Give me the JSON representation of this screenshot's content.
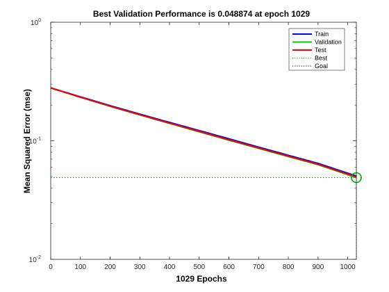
{
  "chart_data": {
    "type": "line",
    "title": "Best Validation Performance is 0.048874 at epoch 1029",
    "xlabel": "1029 Epochs",
    "ylabel": "Mean Squared Error  (mse)",
    "xlim": [
      0,
      1029
    ],
    "ylim": [
      0.01,
      1
    ],
    "yscale": "log",
    "x_ticks": [
      0,
      100,
      200,
      300,
      400,
      500,
      600,
      700,
      800,
      900,
      1000
    ],
    "y_ticks": [
      {
        "value": 0.01,
        "base": "10",
        "exp": "-2"
      },
      {
        "value": 0.1,
        "base": "10",
        "exp": "-1"
      },
      {
        "value": 1,
        "base": "10",
        "exp": "0"
      }
    ],
    "grid": false,
    "legend_position": "top-right",
    "series": [
      {
        "name": "Train",
        "color": "#0000ff",
        "style": "solid",
        "points": [
          [
            0,
            0.28
          ],
          [
            100,
            0.235
          ],
          [
            200,
            0.198
          ],
          [
            300,
            0.168
          ],
          [
            400,
            0.143
          ],
          [
            500,
            0.122
          ],
          [
            600,
            0.104
          ],
          [
            700,
            0.0885
          ],
          [
            800,
            0.0755
          ],
          [
            900,
            0.0645
          ],
          [
            1029,
            0.0505
          ]
        ]
      },
      {
        "name": "Validation",
        "color": "#00cc00",
        "style": "solid",
        "points": [
          [
            0,
            0.279
          ],
          [
            100,
            0.233
          ],
          [
            200,
            0.195
          ],
          [
            300,
            0.165
          ],
          [
            400,
            0.14
          ],
          [
            500,
            0.119
          ],
          [
            600,
            0.101
          ],
          [
            700,
            0.0862
          ],
          [
            800,
            0.0735
          ],
          [
            900,
            0.0628
          ],
          [
            1029,
            0.048874
          ]
        ]
      },
      {
        "name": "Test",
        "color": "#ff0000",
        "style": "solid",
        "points": [
          [
            0,
            0.279
          ],
          [
            100,
            0.233
          ],
          [
            200,
            0.196
          ],
          [
            300,
            0.166
          ],
          [
            400,
            0.141
          ],
          [
            500,
            0.12
          ],
          [
            600,
            0.102
          ],
          [
            700,
            0.087
          ],
          [
            800,
            0.0742
          ],
          [
            900,
            0.0634
          ],
          [
            1029,
            0.0495
          ]
        ]
      },
      {
        "name": "Best",
        "color": "#00aa00",
        "style": "dotted",
        "best_epoch": 1029,
        "best_value": 0.048874
      },
      {
        "name": "Goal",
        "color": "#000000",
        "style": "dotted",
        "value": 0
      }
    ]
  }
}
